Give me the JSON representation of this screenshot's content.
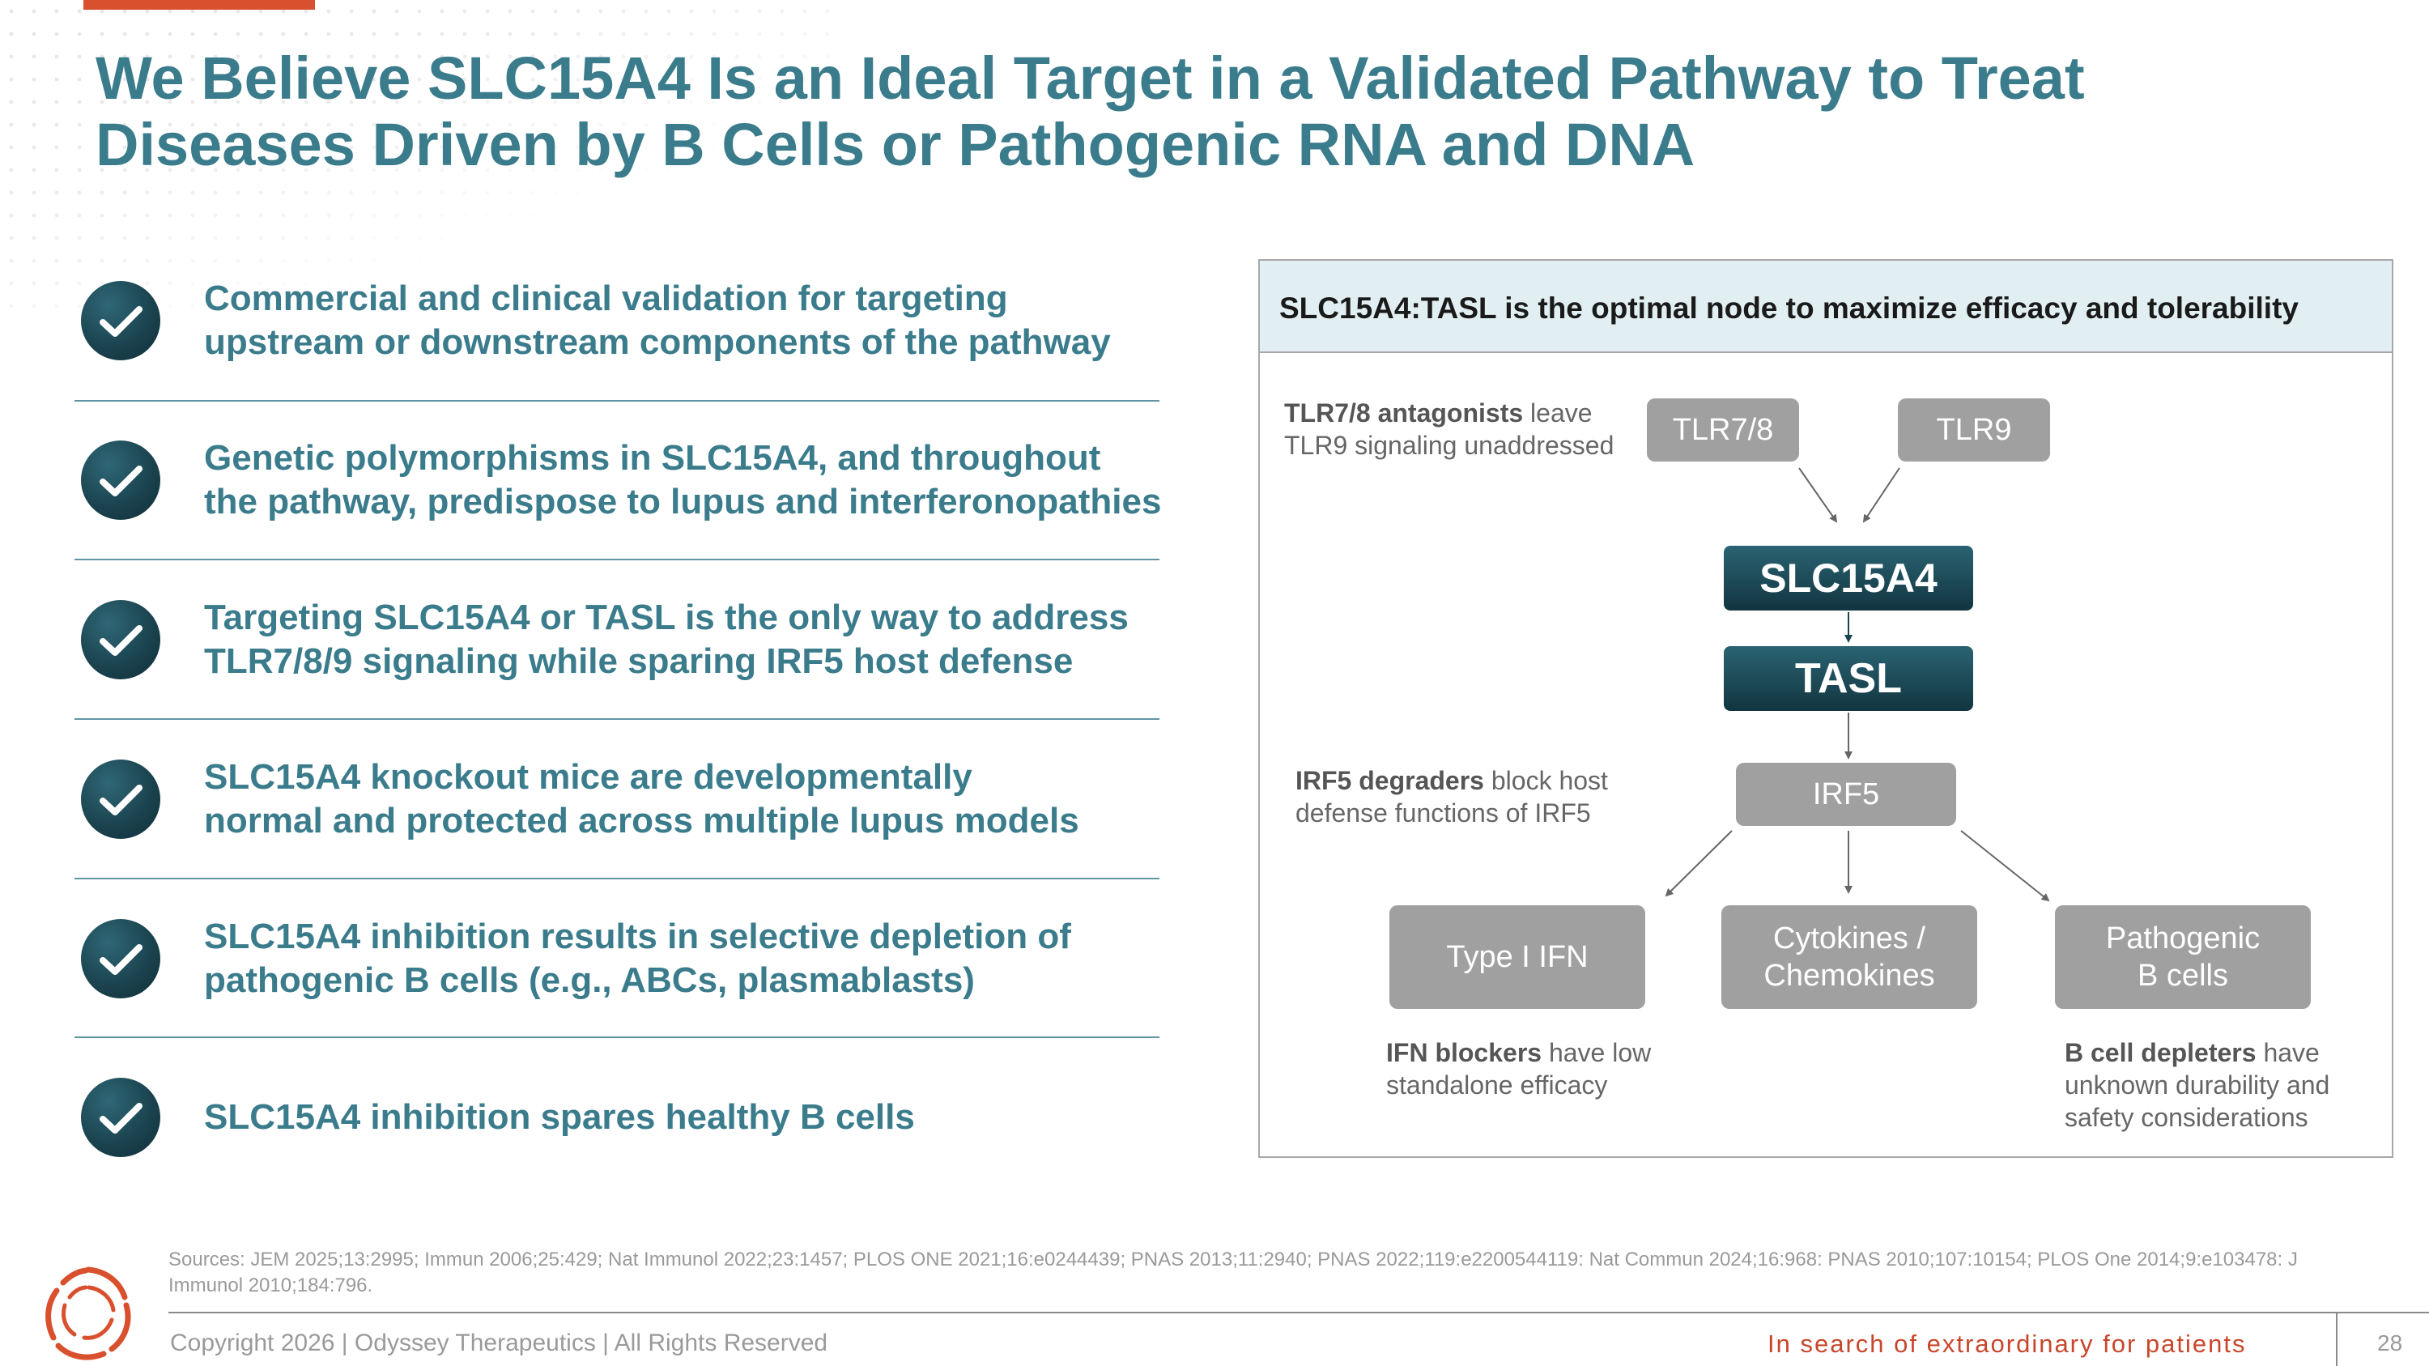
{
  "slide": {
    "title_lines": [
      "We Believe SLC15A4 Is an Ideal Target in a Validated Pathway to Treat",
      "Diseases Driven by B Cells or Pathogenic RNA and DNA"
    ],
    "accent_color": "#d9502e",
    "title_color": "#3b7c8c"
  },
  "points": [
    {
      "lines": [
        "Commercial and clinical validation for targeting",
        "upstream or downstream components of the pathway"
      ],
      "icon": "checkmark-icon"
    },
    {
      "lines": [
        "Genetic polymorphisms in SLC15A4, and throughout",
        "the pathway, predispose to lupus and interferonopathies"
      ],
      "icon": "checkmark-icon"
    },
    {
      "lines": [
        "Targeting SLC15A4 or TASL is the only way to address",
        "TLR7/8/9 signaling while sparing IRF5 host defense"
      ],
      "icon": "checkmark-icon"
    },
    {
      "lines": [
        "SLC15A4 knockout mice are developmentally",
        "normal and protected across multiple lupus models"
      ],
      "icon": "checkmark-icon"
    },
    {
      "lines": [
        "SLC15A4 inhibition results in selective depletion of",
        "pathogenic B cells (e.g., ABCs, plasmablasts)"
      ],
      "icon": "checkmark-icon"
    },
    {
      "lines": [
        "SLC15A4 inhibition spares healthy B cells"
      ],
      "icon": "checkmark-icon"
    }
  ],
  "diagram": {
    "header": "SLC15A4:TASL is the optimal node to maximize efficacy and tolerability",
    "nodes": {
      "tlr78": "TLR7/8",
      "tlr9": "TLR9",
      "slc15a4": "SLC15A4",
      "tasl": "TASL",
      "irf5": "IRF5",
      "type1ifn": "Type I IFN",
      "cytokines_line1": "Cytokines /",
      "cytokines_line2": "Chemokines",
      "pathogenic_line1": "Pathogenic",
      "pathogenic_line2": "B cells"
    },
    "notes": {
      "tlr_bold": "TLR7/8 antagonists",
      "tlr_rest1": " leave",
      "tlr_line2": "TLR9 signaling unaddressed",
      "irf5_bold": "IRF5 degraders",
      "irf5_rest1": " block host",
      "irf5_line2": "defense functions of IRF5",
      "ifn_bold": "IFN blockers",
      "ifn_rest1": " have low",
      "ifn_line2": "standalone efficacy",
      "bcell_bold": "B cell depleters",
      "bcell_rest1": " have",
      "bcell_line2": "unknown durability and",
      "bcell_line3": "safety considerations"
    },
    "colors": {
      "grey_box": "#a0a0a0",
      "dark_box": "#1b4450",
      "header_bg": "#e1eff3"
    }
  },
  "footer": {
    "sources": "Sources: JEM 2025;13:2995; Immun 2006;25:429; Nat Immunol 2022;23:1457; PLOS ONE 2021;16:e0244439; PNAS 2013;11:2940; PNAS 2022;119:e2200544119: Nat Commun 2024;16:968: PNAS 2010;107:10154; PLOS One 2014;9:e103478: J Immunol 2010;184:796.",
    "copyright": "Copyright 2026  |  Odyssey Therapeutics  |  All Rights Reserved",
    "tagline": "In search of extraordinary for patients",
    "page_number": "28",
    "logo_icon": "odyssey-swirl-logo"
  }
}
